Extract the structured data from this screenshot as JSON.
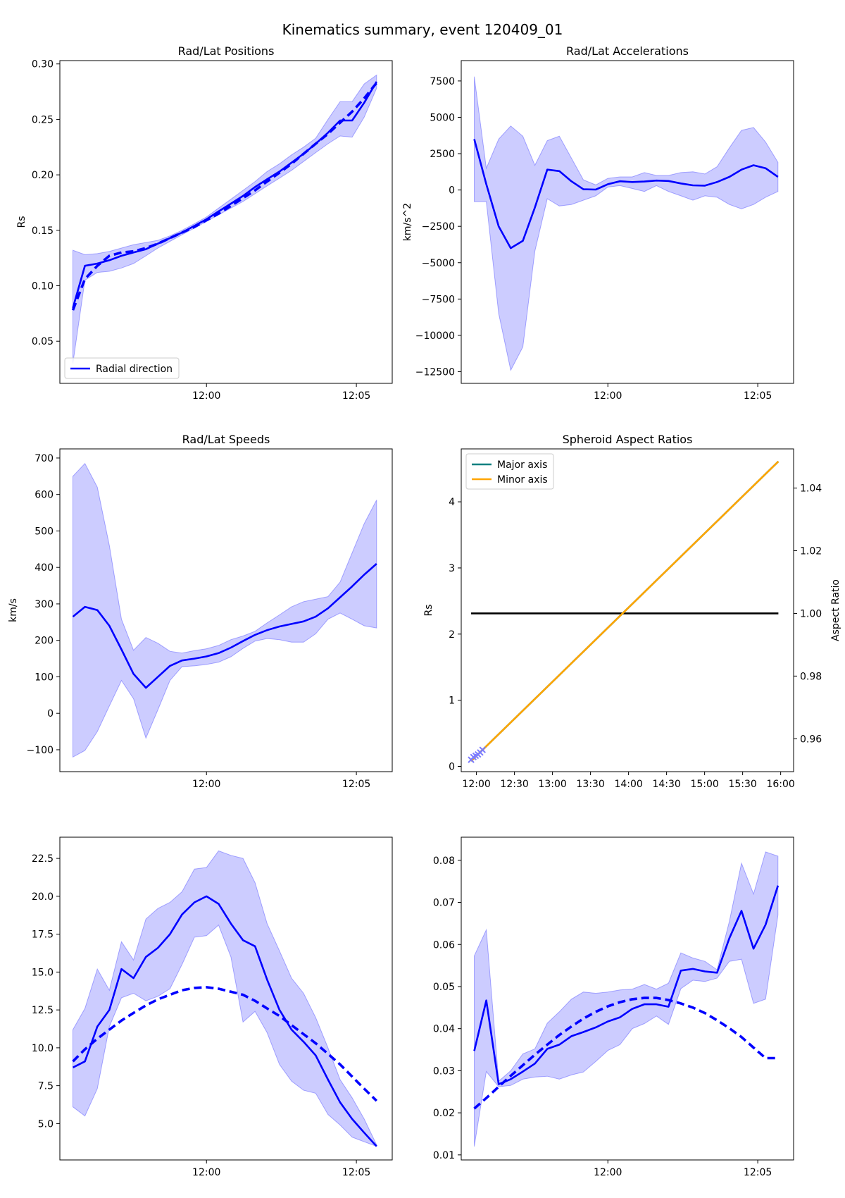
{
  "figure": {
    "suptitle": "Kinematics summary, event 120409_01"
  },
  "chart_data": [
    {
      "type": "line",
      "title": "Rad/Lat Positions",
      "xlabel": "",
      "ylabel": "Rs",
      "xlim": [
        -4.5,
        5.7
      ],
      "ylim": [
        0.012,
        0.303
      ],
      "yticks": [
        0.05,
        0.1,
        0.15,
        0.2,
        0.25,
        0.3
      ],
      "ytick_labels": [
        "0.05",
        "0.10",
        "0.15",
        "0.20",
        "0.25",
        "0.30"
      ],
      "xticks": [
        0,
        4.6
      ],
      "xtick_labels": [
        "12:00",
        "12:05"
      ],
      "legend": {
        "position": "lower-left",
        "entries": [
          {
            "label": "Radial direction",
            "color": "#0000ff",
            "style": "solid"
          }
        ]
      },
      "x": [
        -4.1,
        -3.73,
        -3.35,
        -2.98,
        -2.61,
        -2.24,
        -1.86,
        -1.49,
        -1.12,
        -0.75,
        -0.37,
        0,
        0.37,
        0.75,
        1.12,
        1.49,
        1.86,
        2.24,
        2.61,
        2.98,
        3.35,
        3.73,
        4.1,
        4.47,
        4.84,
        5.22
      ],
      "series": [
        {
          "style": "solid",
          "color": "#0000ff",
          "values": [
            0.08,
            0.118,
            0.12,
            0.123,
            0.127,
            0.13,
            0.133,
            0.138,
            0.143,
            0.148,
            0.154,
            0.16,
            0.167,
            0.174,
            0.181,
            0.189,
            0.196,
            0.203,
            0.211,
            0.219,
            0.228,
            0.238,
            0.249,
            0.249,
            0.265,
            0.284
          ]
        },
        {
          "style": "dashed",
          "color": "#0000ff",
          "values": [
            0.078,
            0.106,
            0.118,
            0.127,
            0.13,
            0.131,
            0.134,
            0.138,
            0.143,
            0.148,
            0.153,
            0.159,
            0.165,
            0.172,
            0.179,
            0.186,
            0.194,
            0.202,
            0.21,
            0.219,
            0.228,
            0.237,
            0.247,
            0.257,
            0.269,
            0.283
          ]
        }
      ],
      "band": {
        "upper": [
          0.132,
          0.128,
          0.129,
          0.131,
          0.134,
          0.137,
          0.139,
          0.141,
          0.145,
          0.15,
          0.156,
          0.162,
          0.17,
          0.178,
          0.186,
          0.194,
          0.203,
          0.21,
          0.218,
          0.225,
          0.233,
          0.25,
          0.266,
          0.266,
          0.282,
          0.29
        ],
        "lower": [
          0.03,
          0.105,
          0.112,
          0.113,
          0.116,
          0.12,
          0.127,
          0.134,
          0.14,
          0.146,
          0.152,
          0.158,
          0.164,
          0.17,
          0.176,
          0.183,
          0.19,
          0.197,
          0.204,
          0.212,
          0.22,
          0.228,
          0.235,
          0.234,
          0.252,
          0.278
        ]
      }
    },
    {
      "type": "line",
      "title": "Rad/Lat Accelerations",
      "xlabel": "",
      "ylabel": "km/s^2",
      "xlim": [
        -4.5,
        5.7
      ],
      "ylim": [
        -13300,
        8900
      ],
      "yticks": [
        -12500,
        -10000,
        -7500,
        -5000,
        -2500,
        0,
        2500,
        5000,
        7500
      ],
      "ytick_labels": [
        "−12500",
        "−10000",
        "−7500",
        "−5000",
        "−2500",
        "0",
        "2500",
        "5000",
        "7500"
      ],
      "xticks": [
        0,
        4.6
      ],
      "xtick_labels": [
        "12:00",
        "12:05"
      ],
      "x": [
        -4.1,
        -3.73,
        -3.35,
        -2.98,
        -2.61,
        -2.24,
        -1.86,
        -1.49,
        -1.12,
        -0.75,
        -0.37,
        0,
        0.37,
        0.75,
        1.12,
        1.49,
        1.86,
        2.24,
        2.61,
        2.98,
        3.35,
        3.73,
        4.1,
        4.47,
        4.84,
        5.22
      ],
      "series": [
        {
          "style": "solid",
          "color": "#0000ff",
          "values": [
            3500,
            400,
            -2500,
            -4000,
            -3500,
            -1200,
            1400,
            1300,
            600,
            50,
            30,
            400,
            600,
            550,
            580,
            650,
            620,
            450,
            320,
            300,
            550,
            900,
            1400,
            1700,
            1500,
            900
          ]
        }
      ],
      "band": {
        "upper": [
          7800,
          1500,
          3500,
          4400,
          3700,
          1700,
          3400,
          3700,
          2200,
          700,
          350,
          800,
          900,
          900,
          1200,
          1000,
          1000,
          1200,
          1250,
          1100,
          1600,
          2900,
          4100,
          4300,
          3300,
          1900
        ],
        "lower": [
          -800,
          -800,
          -8500,
          -12400,
          -10800,
          -4200,
          -600,
          -1100,
          -1000,
          -700,
          -400,
          200,
          300,
          100,
          -100,
          300,
          -100,
          -400,
          -700,
          -400,
          -500,
          -1000,
          -1300,
          -1000,
          -500,
          -100
        ]
      }
    },
    {
      "type": "line",
      "title": "Rad/Lat Speeds",
      "xlabel": "",
      "ylabel": "km/s",
      "xlim": [
        -4.5,
        5.7
      ],
      "ylim": [
        -160,
        725
      ],
      "yticks": [
        -100,
        0,
        100,
        200,
        300,
        400,
        500,
        600,
        700
      ],
      "ytick_labels": [
        "−100",
        "0",
        "100",
        "200",
        "300",
        "400",
        "500",
        "600",
        "700"
      ],
      "xticks": [
        0,
        4.6
      ],
      "xtick_labels": [
        "12:00",
        "12:05"
      ],
      "x": [
        -4.1,
        -3.73,
        -3.35,
        -2.98,
        -2.61,
        -2.24,
        -1.86,
        -1.49,
        -1.12,
        -0.75,
        -0.37,
        0,
        0.37,
        0.75,
        1.12,
        1.49,
        1.86,
        2.24,
        2.61,
        2.98,
        3.35,
        3.73,
        4.1,
        4.47,
        4.84,
        5.22
      ],
      "series": [
        {
          "style": "solid",
          "color": "#0000ff",
          "values": [
            265,
            292,
            283,
            240,
            175,
            108,
            70,
            100,
            130,
            145,
            150,
            156,
            165,
            180,
            198,
            215,
            228,
            238,
            245,
            252,
            265,
            288,
            318,
            348,
            380,
            410
          ]
        }
      ],
      "band": {
        "upper": [
          650,
          685,
          620,
          460,
          258,
          173,
          208,
          192,
          170,
          165,
          172,
          177,
          186,
          202,
          212,
          225,
          248,
          270,
          292,
          306,
          313,
          320,
          360,
          440,
          520,
          585
        ],
        "lower": [
          -120,
          -102,
          -50,
          20,
          90,
          40,
          -68,
          10,
          90,
          128,
          130,
          134,
          140,
          155,
          178,
          198,
          205,
          202,
          195,
          195,
          218,
          258,
          275,
          258,
          240,
          234
        ]
      }
    },
    {
      "type": "line",
      "title": "Spheroid Aspect Ratios",
      "xlabel": "",
      "ylabel": "Rs",
      "y2label": "Aspect Ratio",
      "x_hours": [
        11.93,
        16.0
      ],
      "xlim": [
        11.8,
        16.17
      ],
      "ylim": [
        -0.08,
        4.8
      ],
      "y2lim": [
        0.9495,
        1.0525
      ],
      "yticks": [
        0,
        1,
        2,
        3,
        4
      ],
      "ytick_labels": [
        "0",
        "1",
        "2",
        "3",
        "4"
      ],
      "y2ticks": [
        0.96,
        0.98,
        1.0,
        1.02,
        1.04
      ],
      "y2tick_labels": [
        "0.96",
        "0.98",
        "1.00",
        "1.02",
        "1.04"
      ],
      "xticks": [
        12.0,
        12.5,
        13.0,
        13.5,
        14.0,
        14.5,
        15.0,
        15.5,
        16.0
      ],
      "xtick_labels": [
        "12:00",
        "12:30",
        "13:00",
        "13:30",
        "14:00",
        "14:30",
        "15:00",
        "15:30",
        "16:00"
      ],
      "legend": {
        "position": "upper-left",
        "entries": [
          {
            "label": "Major axis",
            "color": "#008080",
            "style": "solid"
          },
          {
            "label": "Minor axis",
            "color": "#ffa500",
            "style": "solid"
          }
        ]
      },
      "series": [
        {
          "axis": "y2",
          "color": "#000000",
          "x": [
            11.93,
            15.97
          ],
          "values": [
            1.0,
            1.0
          ]
        },
        {
          "axis": "y",
          "color": "#008080",
          "x": [
            11.93,
            15.97
          ],
          "values": [
            0.08,
            4.61
          ]
        },
        {
          "axis": "y",
          "color": "#ffa500",
          "x": [
            11.93,
            15.97
          ],
          "values": [
            0.08,
            4.61
          ]
        }
      ],
      "markers": {
        "color": "#7b7bff",
        "x": [
          11.93,
          11.96,
          11.99,
          12.02,
          12.05,
          12.08
        ],
        "values": [
          0.1,
          0.14,
          0.16,
          0.18,
          0.21,
          0.25
        ]
      }
    },
    {
      "type": "line",
      "title": "",
      "xlabel": "",
      "ylabel": "",
      "xlim": [
        -4.5,
        5.7
      ],
      "ylim": [
        2.6,
        23.9
      ],
      "yticks": [
        5.0,
        7.5,
        10.0,
        12.5,
        15.0,
        17.5,
        20.0,
        22.5
      ],
      "ytick_labels": [
        "5.0",
        "7.5",
        "10.0",
        "12.5",
        "15.0",
        "17.5",
        "20.0",
        "22.5"
      ],
      "xticks": [
        0,
        4.6
      ],
      "xtick_labels": [
        "12:00",
        "12:05"
      ],
      "x": [
        -4.1,
        -3.73,
        -3.35,
        -2.98,
        -2.61,
        -2.24,
        -1.86,
        -1.49,
        -1.12,
        -0.75,
        -0.37,
        0,
        0.37,
        0.75,
        1.12,
        1.49,
        1.86,
        2.24,
        2.61,
        2.98,
        3.35,
        3.73,
        4.1,
        4.47,
        4.84,
        5.22
      ],
      "series": [
        {
          "style": "solid",
          "color": "#0000ff",
          "values": [
            8.7,
            9.1,
            11.4,
            12.5,
            15.2,
            14.6,
            16.0,
            16.6,
            17.5,
            18.8,
            19.6,
            20.0,
            19.5,
            18.2,
            17.1,
            16.7,
            14.5,
            12.5,
            11.2,
            10.4,
            9.5,
            7.9,
            6.4,
            5.3,
            4.4,
            3.5
          ]
        },
        {
          "style": "dashed",
          "color": "#0000ff",
          "values": [
            9.1,
            9.9,
            10.6,
            11.2,
            11.8,
            12.3,
            12.8,
            13.2,
            13.5,
            13.8,
            13.95,
            14.0,
            13.9,
            13.7,
            13.5,
            13.1,
            12.6,
            12.1,
            11.5,
            10.9,
            10.3,
            9.6,
            8.9,
            8.1,
            7.3,
            6.5
          ]
        }
      ],
      "band": {
        "upper": [
          11.2,
          12.6,
          15.2,
          13.8,
          17.0,
          15.8,
          18.5,
          19.2,
          19.6,
          20.3,
          21.8,
          21.9,
          23.0,
          22.7,
          22.5,
          20.9,
          18.2,
          16.4,
          14.6,
          13.6,
          12.0,
          10.0,
          7.9,
          6.7,
          5.3,
          3.6
        ],
        "lower": [
          6.1,
          5.5,
          7.3,
          11.4,
          13.3,
          13.6,
          13.1,
          13.4,
          13.9,
          15.5,
          17.3,
          17.4,
          18.1,
          16.0,
          11.7,
          12.4,
          11.0,
          8.9,
          7.8,
          7.2,
          7.0,
          5.6,
          4.9,
          4.1,
          3.8,
          3.5
        ]
      }
    },
    {
      "type": "line",
      "title": "",
      "xlabel": "",
      "ylabel": "",
      "xlim": [
        -4.5,
        5.7
      ],
      "ylim": [
        0.0088,
        0.0855
      ],
      "yticks": [
        0.01,
        0.02,
        0.03,
        0.04,
        0.05,
        0.06,
        0.07,
        0.08
      ],
      "ytick_labels": [
        "0.01",
        "0.02",
        "0.03",
        "0.04",
        "0.05",
        "0.06",
        "0.07",
        "0.08"
      ],
      "xticks": [
        0,
        4.6
      ],
      "xtick_labels": [
        "12:00",
        "12:05"
      ],
      "x": [
        -4.1,
        -3.73,
        -3.35,
        -2.98,
        -2.61,
        -2.24,
        -1.86,
        -1.49,
        -1.12,
        -0.75,
        -0.37,
        0,
        0.37,
        0.75,
        1.12,
        1.49,
        1.86,
        2.24,
        2.61,
        2.98,
        3.35,
        3.73,
        4.1,
        4.47,
        4.84,
        5.22
      ],
      "series": [
        {
          "style": "solid",
          "color": "#0000ff",
          "values": [
            0.0347,
            0.0467,
            0.0268,
            0.028,
            0.0298,
            0.0317,
            0.0352,
            0.0362,
            0.0382,
            0.0392,
            0.0403,
            0.0417,
            0.0427,
            0.0447,
            0.0458,
            0.0458,
            0.0452,
            0.0538,
            0.0542,
            0.0536,
            0.0533,
            0.0615,
            0.068,
            0.059,
            0.0647,
            0.074
          ]
        },
        {
          "style": "dashed",
          "color": "#0000ff",
          "values": [
            0.021,
            0.0235,
            0.0262,
            0.0288,
            0.0313,
            0.0338,
            0.0362,
            0.0385,
            0.0405,
            0.0424,
            0.044,
            0.0453,
            0.0463,
            0.047,
            0.0473,
            0.0473,
            0.0468,
            0.046,
            0.045,
            0.0437,
            0.042,
            0.0401,
            0.038,
            0.0355,
            0.033,
            0.033
          ]
        }
      ],
      "band": {
        "upper": [
          0.0573,
          0.0635,
          0.0275,
          0.03,
          0.034,
          0.0352,
          0.0413,
          0.044,
          0.047,
          0.0487,
          0.0484,
          0.0487,
          0.0492,
          0.0494,
          0.0505,
          0.0494,
          0.0508,
          0.058,
          0.0568,
          0.056,
          0.054,
          0.0655,
          0.0793,
          0.072,
          0.082,
          0.081
        ],
        "lower": [
          0.012,
          0.0298,
          0.0262,
          0.0265,
          0.028,
          0.0285,
          0.0287,
          0.028,
          0.029,
          0.0297,
          0.0322,
          0.0348,
          0.0362,
          0.04,
          0.0412,
          0.043,
          0.041,
          0.0495,
          0.0515,
          0.0512,
          0.052,
          0.056,
          0.0565,
          0.046,
          0.047,
          0.067
        ]
      }
    }
  ]
}
